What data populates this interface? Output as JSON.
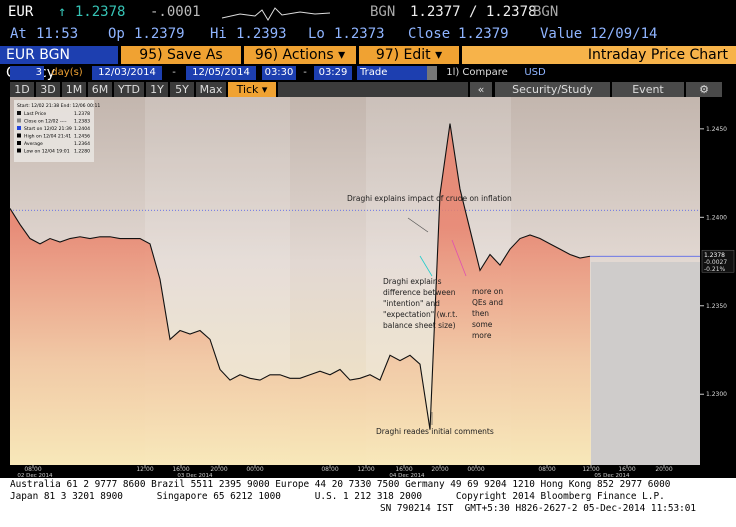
{
  "header": {
    "currency": "EUR",
    "last": "↑ 1.2378",
    "change": "-.0001",
    "quote_ccy": "BGN",
    "bid_ask": "1.2377 / 1.2378",
    "quote_ccy2": "BGN",
    "at_label": "At",
    "at": "11:53",
    "op_label": "Op",
    "op": "1.2379",
    "hi_label": "Hi",
    "hi": "1.2393",
    "lo_label": "Lo",
    "lo": "1.2373",
    "close_label": "Close",
    "close": "1.2379",
    "value_label": "Value",
    "value": "12/09/14"
  },
  "toolbar": {
    "security": "EUR BGN Curncy",
    "save": "95) Save As",
    "actions": "96) Actions ▾",
    "edit": "97) Edit ▾",
    "title": "Intraday Price Chart"
  },
  "range": {
    "days": "3",
    "days_unit": "day(s)",
    "start": "12/03/2014",
    "dash1": "-",
    "end": "12/05/2014",
    "t1": "03:30",
    "dash2": "-",
    "t2": "03:29",
    "field": "Trade",
    "compare": "1l) Compare",
    "ccy": "USD"
  },
  "tabs": [
    "1D",
    "3D",
    "1M",
    "6M",
    "YTD",
    "1Y",
    "5Y",
    "Max",
    "Tick ▾"
  ],
  "tools": [
    "«",
    "Security/Study",
    "Event",
    "⚙"
  ],
  "chart_data": {
    "type": "line",
    "series": [
      {
        "name": "Last Price",
        "color": "#111111",
        "values": [
          1.2405,
          1.2396,
          1.2388,
          1.2385,
          1.2388,
          1.2386,
          1.2388,
          1.2389,
          1.2388,
          1.2389,
          1.2389,
          1.2388,
          1.2388,
          1.2388,
          1.2385,
          1.2365,
          1.2331,
          1.2336,
          1.2334,
          1.2336,
          1.2331,
          1.2314,
          1.2308,
          1.2311,
          1.2309,
          1.2308,
          1.2311,
          1.2311,
          1.2309,
          1.2309,
          1.2311,
          1.2313,
          1.2311,
          1.2314,
          1.2308,
          1.2309,
          1.2311,
          1.2308,
          1.2322,
          1.2319,
          1.2322,
          1.2317,
          1.228,
          1.2413,
          1.2453,
          1.2416,
          1.2393,
          1.237,
          1.2379,
          1.2373,
          1.2382,
          1.2388,
          1.239,
          1.2388,
          1.2385,
          1.2382,
          1.2379,
          1.2377,
          1.2378
        ]
      }
    ],
    "ylim": [
      1.226,
      1.2468
    ],
    "yticks": [
      {
        "value": 1.245,
        "label": "1.2450"
      },
      {
        "value": 1.24,
        "label": "1.2400"
      },
      {
        "value": 1.235,
        "label": "1.2350"
      },
      {
        "value": 1.23,
        "label": "1.2300"
      }
    ],
    "xtick_labels": [
      "08:00",
      "12:00",
      "16:00",
      "20:00",
      "00:00",
      "08:00",
      "12:00",
      "16:00",
      "20:00",
      "00:00",
      "08:00",
      "12:00",
      "16:00",
      "20:00"
    ],
    "date_labels": [
      "02 Dec 2014",
      "03 Dec 2014",
      "04 Dec 2014",
      "05 Dec 2014"
    ],
    "legend_header": "Start: 12/02 21:38 End: 12/06 00:11",
    "stats": [
      {
        "label": "Close on 12/02 ----",
        "value": 1.2383
      },
      {
        "label": "Start on 12/02 21:39",
        "value": 1.2404
      },
      {
        "label": "High on 12/04 21:41",
        "value": 1.2456
      },
      {
        "label": "Average",
        "value": 1.2364
      },
      {
        "label": "Low on 12/04 19:01",
        "value": 1.228,
        "value_label": "1.2280"
      }
    ],
    "last_box": [
      "1.2378",
      "-0.0027",
      "-0.21%"
    ],
    "annotations": [
      {
        "lines": [
          "Draghi explains impact of crude on inflation"
        ]
      },
      {
        "lines": [
          "Draghi explains",
          "difference between",
          "\"intention\" and",
          "\"expectation\" (w.r.t.",
          "balance sheet size)"
        ]
      },
      {
        "lines": [
          "more on",
          "QEs and",
          "then",
          "some",
          "more"
        ]
      },
      {
        "lines": [
          "Draghi reades initial comments"
        ]
      }
    ]
  },
  "footer": [
    "Australia 61 2 9777 8600 Brazil 5511 2395 9000 Europe 44 20 7330 7500 Germany 49 69 9204 1210 Hong Kong 852 2977 6000",
    "Japan 81 3 3201 8900      Singapore 65 6212 1000      U.S. 1 212 318 2000      Copyright 2014 Bloomberg Finance L.P.",
    "SN 790214 IST  GMT+5:30 H826-2627-2 05-Dec-2014 11:53:01"
  ]
}
